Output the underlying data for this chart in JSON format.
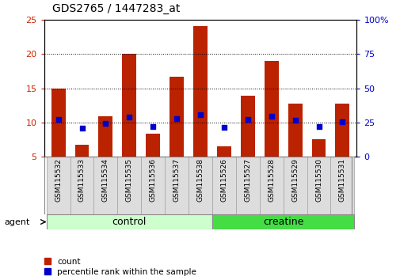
{
  "title": "GDS2765 / 1447283_at",
  "samples": [
    "GSM115532",
    "GSM115533",
    "GSM115534",
    "GSM115535",
    "GSM115536",
    "GSM115537",
    "GSM115538",
    "GSM115526",
    "GSM115527",
    "GSM115528",
    "GSM115529",
    "GSM115530",
    "GSM115531"
  ],
  "counts": [
    15.0,
    6.8,
    10.9,
    20.0,
    8.4,
    16.7,
    24.0,
    6.5,
    13.9,
    19.0,
    12.7,
    7.6,
    12.7
  ],
  "percentiles": [
    27.0,
    21.0,
    24.5,
    29.0,
    22.0,
    28.0,
    30.5,
    21.5,
    27.5,
    29.5,
    26.5,
    22.0,
    25.5
  ],
  "ylim_left": [
    5,
    25
  ],
  "ylim_right": [
    0,
    100
  ],
  "yticks_left": [
    5,
    10,
    15,
    20,
    25
  ],
  "yticks_right": [
    0,
    25,
    50,
    75,
    100
  ],
  "ytick_labels_right": [
    "0",
    "25",
    "50",
    "75",
    "100%"
  ],
  "bar_color": "#bb2200",
  "dot_color": "#0000cc",
  "bg_color": "#ffffff",
  "bar_width": 0.6,
  "control_label": "control",
  "creatine_label": "creatine",
  "agent_label": "agent",
  "control_color": "#ccffcc",
  "creatine_color": "#44dd44",
  "control_indices": [
    0,
    1,
    2,
    3,
    4,
    5,
    6
  ],
  "creatine_indices": [
    7,
    8,
    9,
    10,
    11,
    12
  ],
  "legend_count": "count",
  "legend_percentile": "percentile rank within the sample",
  "left_tick_color": "#cc2200",
  "right_tick_color": "#0000cc",
  "label_cell_color": "#dddddd",
  "label_cell_edge": "#aaaaaa"
}
